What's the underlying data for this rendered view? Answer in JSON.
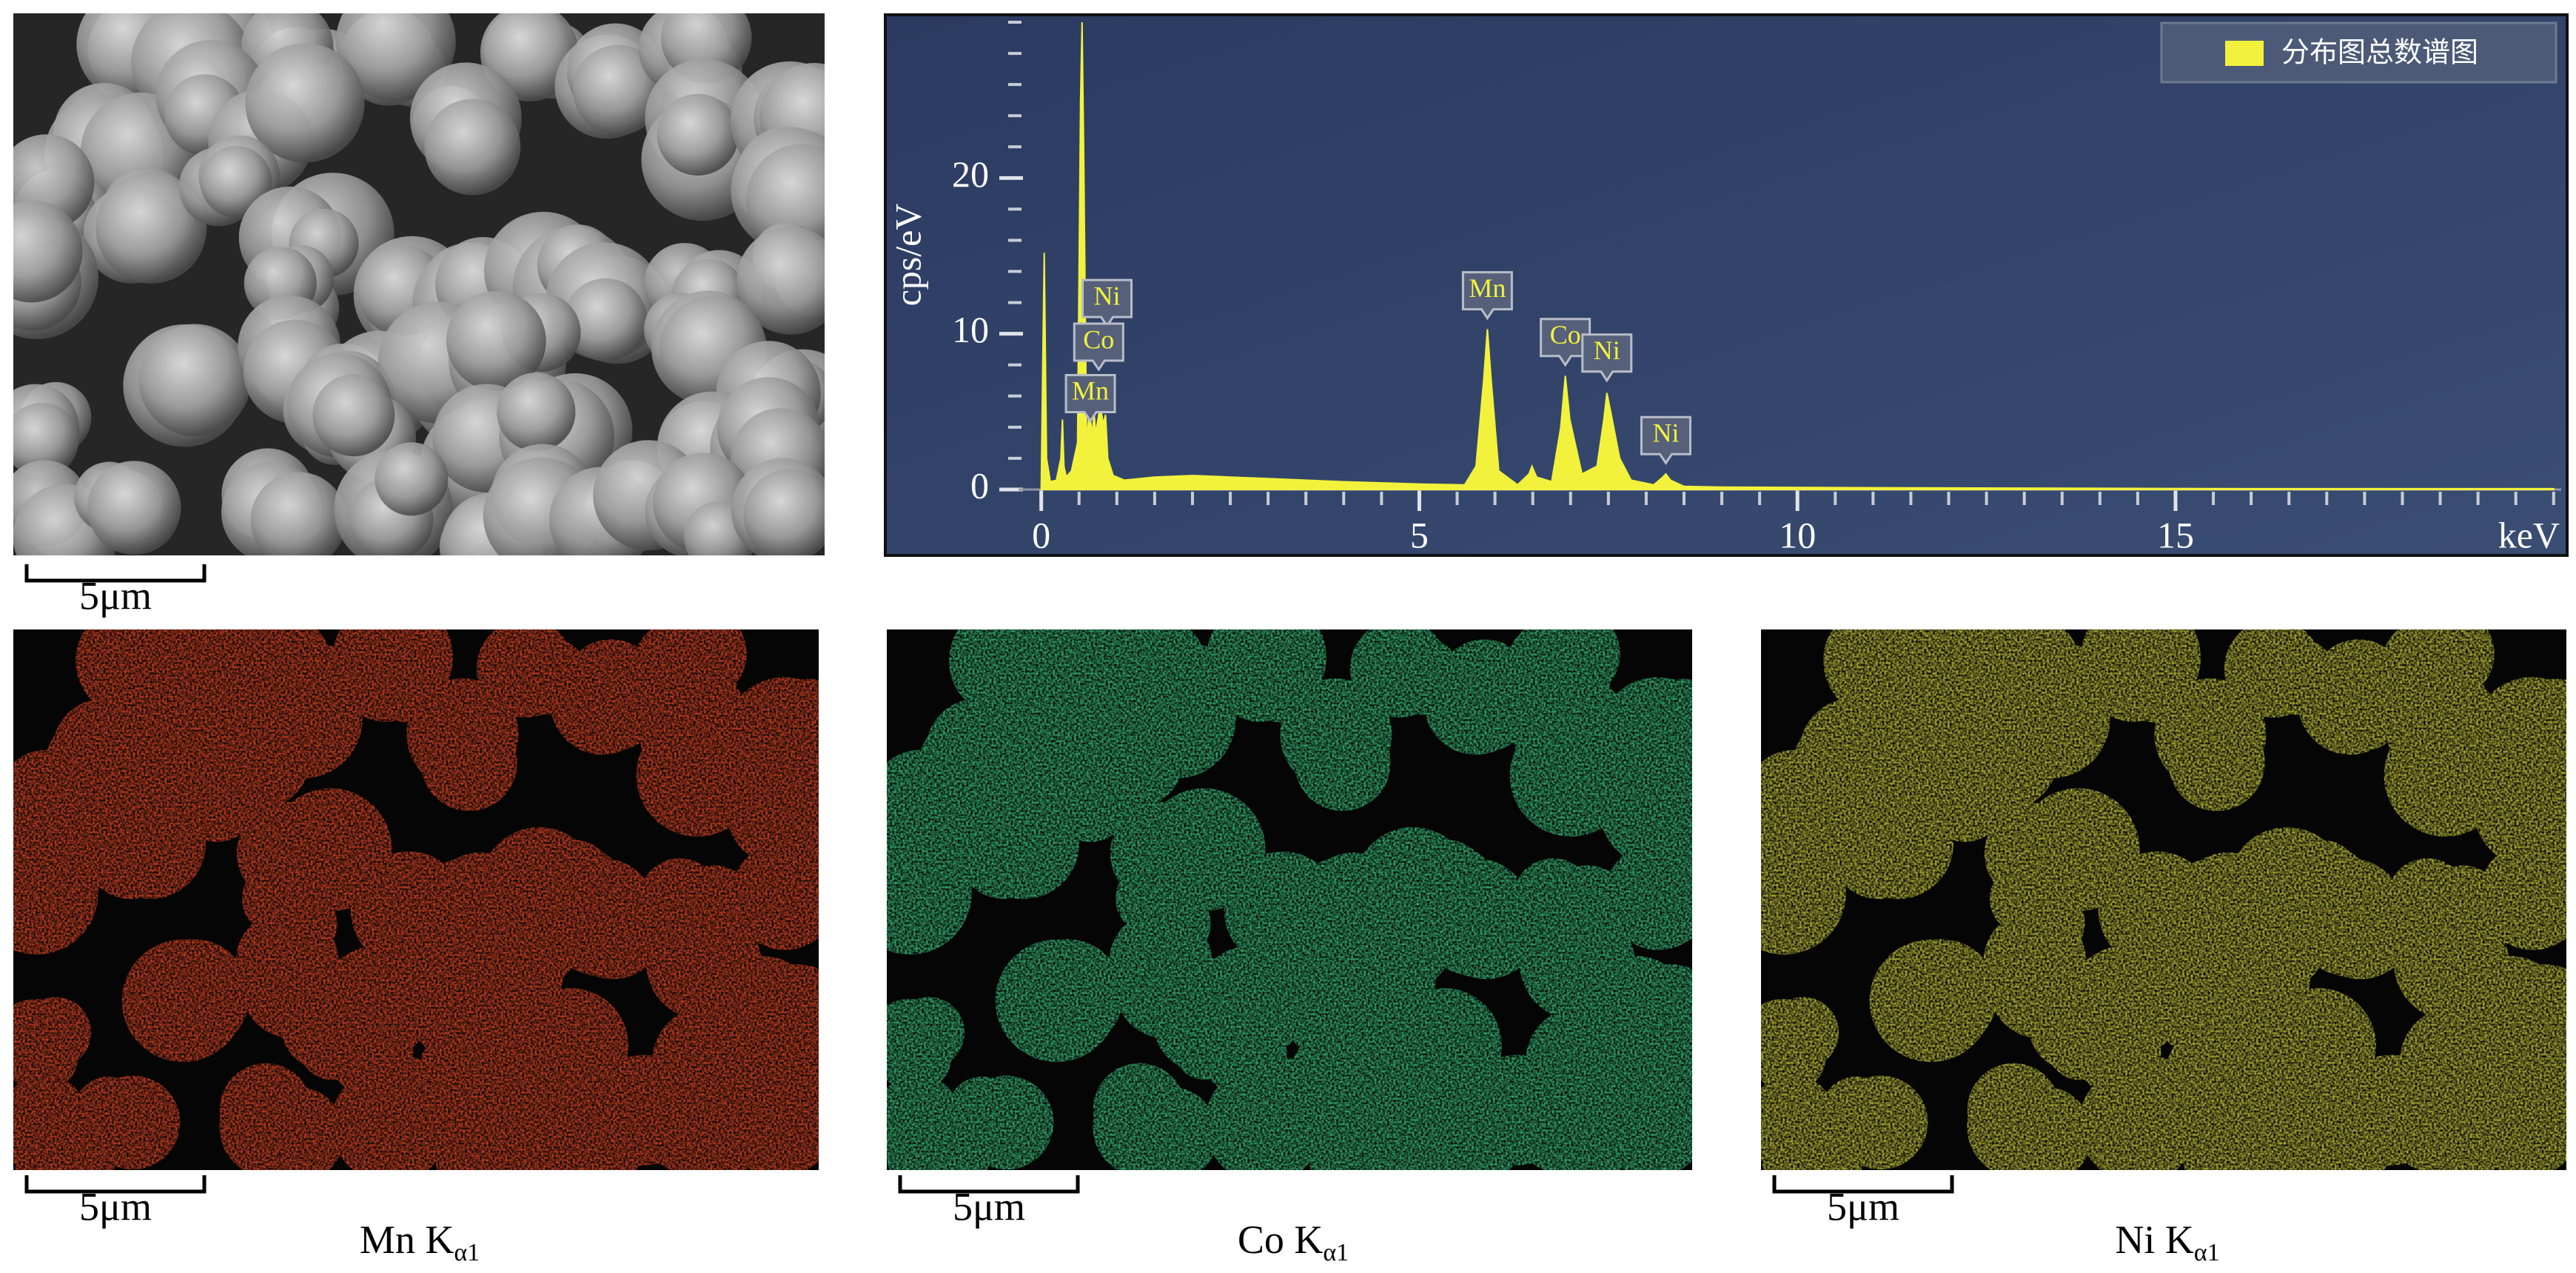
{
  "sem_image": {
    "scale_bar": "5μm"
  },
  "chart_data": {
    "type": "area",
    "x": [
      0,
      0.02,
      0.04,
      0.07,
      0.12,
      0.2,
      0.26,
      0.28,
      0.3,
      0.33,
      0.4,
      0.48,
      0.52,
      0.54,
      0.56,
      0.6,
      0.64,
      0.67,
      0.7,
      0.72,
      0.75,
      0.78,
      0.82,
      0.85,
      0.88,
      0.95,
      1.1,
      1.5,
      2,
      2.5,
      3,
      4,
      5,
      5.6,
      5.75,
      5.85,
      5.9,
      5.95,
      6.05,
      6.3,
      6.45,
      6.49,
      6.55,
      6.75,
      6.87,
      6.93,
      6.99,
      7.15,
      7.35,
      7.44,
      7.48,
      7.53,
      7.65,
      7.8,
      8.1,
      8.22,
      8.26,
      8.32,
      8.5,
      9,
      12,
      16,
      20
    ],
    "series": [
      {
        "name": "分布图总数谱图",
        "color": "#f2f23c",
        "values": [
          0,
          8,
          15.2,
          2,
          0.5,
          0.6,
          2,
          4.5,
          1.5,
          0.8,
          1.2,
          3,
          25,
          30,
          22,
          3,
          5.2,
          3.5,
          4.8,
          3.6,
          4.5,
          5.4,
          4.2,
          4.8,
          2,
          0.9,
          0.6,
          0.8,
          0.9,
          0.8,
          0.7,
          0.5,
          0.35,
          0.3,
          1.5,
          7,
          10.3,
          7,
          1.2,
          0.3,
          1,
          1.5,
          0.8,
          0.5,
          4,
          7.3,
          4.5,
          1,
          1.5,
          4.5,
          6.2,
          5,
          2,
          0.6,
          0.3,
          0.8,
          1,
          0.6,
          0.2,
          0.15,
          0.1,
          0.05,
          0.05
        ]
      }
    ],
    "xlim": [
      -0.3,
      20.1
    ],
    "xticks": [
      0,
      5,
      10,
      15
    ],
    "xlabel": "keV",
    "ylim": [
      0,
      30
    ],
    "yticks": [
      0,
      10,
      20
    ],
    "ylabel": "cps/eV",
    "legend": "upper right",
    "annotations": [
      {
        "text": "Ni",
        "x": 0.87,
        "y": 10.5
      },
      {
        "text": "Co",
        "x": 0.76,
        "y": 7.7
      },
      {
        "text": "Mn",
        "x": 0.65,
        "y": 4.4
      },
      {
        "text": "Mn",
        "x": 5.9,
        "y": 11
      },
      {
        "text": "Co",
        "x": 6.93,
        "y": 8
      },
      {
        "text": "Ni",
        "x": 7.48,
        "y": 7
      },
      {
        "text": "Ni",
        "x": 8.26,
        "y": 1.7
      }
    ]
  },
  "maps": [
    {
      "element": "Mn K",
      "subscript": "α1",
      "scale_bar": "5μm",
      "color": "#b3391f"
    },
    {
      "element": "Co K",
      "subscript": "α1",
      "scale_bar": "5μm",
      "color": "#2f9a62"
    },
    {
      "element": "Ni K",
      "subscript": "α1",
      "scale_bar": "5μm",
      "color": "#a0a032"
    }
  ]
}
